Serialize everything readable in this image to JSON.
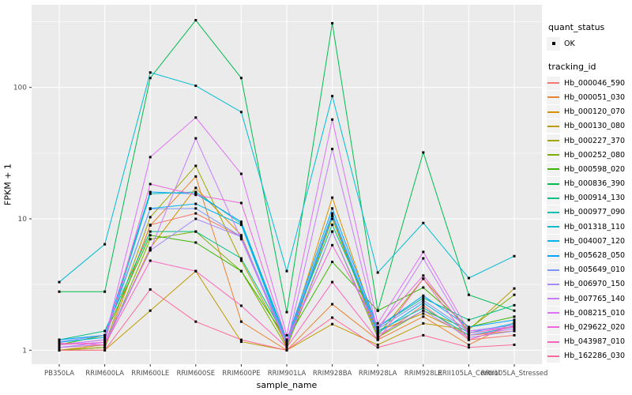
{
  "axes": {
    "x": {
      "label": "sample_name"
    },
    "y": {
      "label": "FPKM + 1",
      "tick_labels": [
        "1",
        "10",
        "100"
      ],
      "tick_values": [
        1,
        10,
        100
      ],
      "scale": "log10"
    }
  },
  "legend": {
    "quant_status": {
      "title": "quant_status",
      "items": [
        {
          "label": "OK",
          "marker": "black-point"
        }
      ]
    },
    "tracking": {
      "title": "tracking_id"
    }
  },
  "style": {
    "panel_bg": "#EBEBEB",
    "grid_color": "#FFFFFF",
    "tick_text_color": "#4D4D4D",
    "marker_color": "#000000",
    "legend_key_bg": "#F2F2F2"
  },
  "chart_data": {
    "type": "line",
    "x_type": "categorical",
    "y_scale": "log10",
    "ylim": [
      1,
      400
    ],
    "grid": true,
    "legend_position": "right",
    "marker": "black-point",
    "xlabel": "sample_name",
    "ylabel": "FPKM + 1",
    "categories": [
      "PB350LA",
      "RRIM600LA",
      "RRIM600LE",
      "RRIM600SE",
      "RRIM600PE",
      "RRIM901LA",
      "RRIM928BA",
      "RRIM928LA",
      "RRIM928LE",
      "RRII105LA_Control",
      "RRII105LA_Stressed"
    ],
    "series": [
      {
        "name": "Hb_000046_590",
        "color": "#F8766D",
        "values": [
          1.0,
          1.05,
          9.0,
          11.0,
          7.3,
          1.05,
          10.5,
          1.25,
          2.2,
          1.2,
          1.3
        ]
      },
      {
        "name": "Hb_000051_030",
        "color": "#EA8331",
        "values": [
          1.0,
          1.05,
          8.9,
          21.0,
          1.65,
          1.0,
          2.24,
          1.2,
          1.8,
          1.1,
          1.63
        ]
      },
      {
        "name": "Hb_000120_070",
        "color": "#D89000",
        "values": [
          1.0,
          1.1,
          6.0,
          17.2,
          7.5,
          1.1,
          14.5,
          1.4,
          1.9,
          1.3,
          1.4
        ]
      },
      {
        "name": "Hb_000130_080",
        "color": "#C09B00",
        "values": [
          1.0,
          1.0,
          2.0,
          4.0,
          1.16,
          1.0,
          1.58,
          1.1,
          1.6,
          1.43,
          2.95
        ]
      },
      {
        "name": "Hb_000227_370",
        "color": "#A3A500",
        "values": [
          1.05,
          1.1,
          10.3,
          25.3,
          4.8,
          1.1,
          10.0,
          1.3,
          3.5,
          1.4,
          1.5
        ]
      },
      {
        "name": "Hb_000252_080",
        "color": "#7CAE00",
        "values": [
          1.0,
          1.05,
          7.0,
          8.0,
          4.0,
          1.05,
          8.0,
          1.25,
          2.0,
          1.45,
          2.64
        ]
      },
      {
        "name": "Hb_000598_020",
        "color": "#39B600",
        "values": [
          1.1,
          1.3,
          7.5,
          6.6,
          4.0,
          1.2,
          4.7,
          2.0,
          3.0,
          1.5,
          1.8
        ]
      },
      {
        "name": "Hb_000836_390",
        "color": "#00BB4E",
        "values": [
          2.79,
          2.79,
          118,
          325,
          118,
          1.95,
          308,
          2.0,
          32.0,
          2.64,
          2.0
        ]
      },
      {
        "name": "Hb_000914_130",
        "color": "#00C087",
        "values": [
          1.2,
          1.4,
          8.0,
          8.0,
          5.0,
          1.2,
          9.0,
          1.5,
          2.5,
          1.7,
          2.2
        ]
      },
      {
        "name": "Hb_000977_090",
        "color": "#00C0B2",
        "values": [
          1.1,
          1.2,
          15.5,
          16.0,
          9.2,
          1.15,
          11.0,
          1.4,
          2.1,
          1.3,
          1.5
        ]
      },
      {
        "name": "Hb_001318_110",
        "color": "#00BDD2",
        "values": [
          3.3,
          6.4,
          130,
          103,
          65.0,
          4.0,
          86.0,
          3.9,
          9.3,
          3.54,
          5.2
        ]
      },
      {
        "name": "Hb_004007_120",
        "color": "#00B4EF",
        "values": [
          1.15,
          1.25,
          12.0,
          13.0,
          9.0,
          1.1,
          10.5,
          1.35,
          2.3,
          1.35,
          1.6
        ]
      },
      {
        "name": "Hb_005628_050",
        "color": "#00A6FF",
        "values": [
          1.2,
          1.3,
          16.0,
          15.5,
          9.5,
          1.2,
          12.0,
          1.5,
          2.6,
          1.5,
          1.7
        ]
      },
      {
        "name": "Hb_005649_010",
        "color": "#7C96FF",
        "values": [
          1.16,
          1.3,
          11.9,
          12.0,
          7.3,
          1.15,
          10.8,
          1.45,
          2.4,
          1.4,
          1.55
        ]
      },
      {
        "name": "Hb_006970_150",
        "color": "#A989FF",
        "values": [
          1.05,
          1.15,
          5.75,
          10.0,
          7.3,
          1.1,
          8.0,
          1.3,
          2.0,
          1.25,
          1.4
        ]
      },
      {
        "name": "Hb_007765_140",
        "color": "#C77CFF",
        "values": [
          1.05,
          1.1,
          5.8,
          41.0,
          7.0,
          1.1,
          34.0,
          1.4,
          5.0,
          1.3,
          1.45
        ]
      },
      {
        "name": "Hb_008215_010",
        "color": "#DF70F8",
        "values": [
          1.1,
          1.2,
          29.5,
          59.0,
          22.0,
          1.3,
          57.0,
          1.6,
          5.6,
          1.4,
          1.5
        ]
      },
      {
        "name": "Hb_029622_020",
        "color": "#F066DC",
        "values": [
          1.1,
          1.15,
          18.4,
          15.2,
          13.2,
          1.2,
          6.3,
          1.5,
          3.7,
          1.35,
          1.5
        ]
      },
      {
        "name": "Hb_043987_010",
        "color": "#FF62BC",
        "values": [
          1.13,
          1.1,
          4.8,
          4.0,
          2.18,
          1.05,
          3.3,
          1.2,
          3.5,
          1.2,
          1.54
        ]
      },
      {
        "name": "Hb_162286_030",
        "color": "#FF6A9A",
        "values": [
          1.0,
          1.0,
          2.9,
          1.65,
          1.2,
          1.0,
          1.77,
          1.05,
          1.3,
          1.05,
          1.1
        ]
      }
    ]
  }
}
